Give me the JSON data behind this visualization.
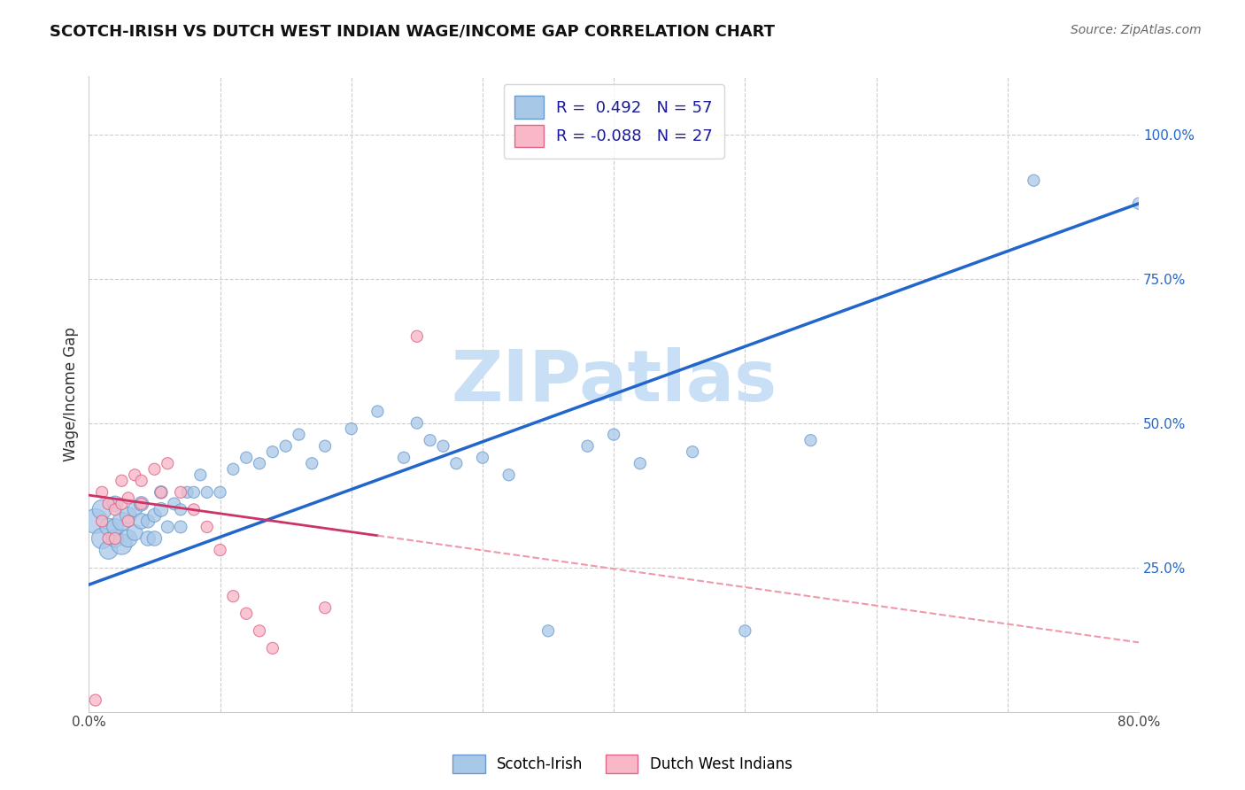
{
  "title": "SCOTCH-IRISH VS DUTCH WEST INDIAN WAGE/INCOME GAP CORRELATION CHART",
  "source": "Source: ZipAtlas.com",
  "ylabel": "Wage/Income Gap",
  "xlim": [
    0.0,
    0.8
  ],
  "ylim": [
    0.0,
    1.1
  ],
  "y_ticks_right": [
    0.25,
    0.5,
    0.75,
    1.0
  ],
  "y_tick_labels_right": [
    "25.0%",
    "50.0%",
    "75.0%",
    "100.0%"
  ],
  "series1_name": "Scotch-Irish",
  "series1_R": "0.492",
  "series1_N": "57",
  "series1_color": "#a8c8e8",
  "series1_edge_color": "#6699cc",
  "series2_name": "Dutch West Indians",
  "series2_R": "-0.088",
  "series2_N": "27",
  "series2_color": "#f8b8c8",
  "series2_edge_color": "#dd6688",
  "trend1_color": "#2266cc",
  "trend2_solid_color": "#cc3366",
  "trend2_dash_color": "#ee99aa",
  "watermark": "ZIPatlas",
  "watermark_color": "#c8dff5",
  "background_color": "#ffffff",
  "grid_color": "#cccccc",
  "title_fontsize": 13,
  "series1_x": [
    0.005,
    0.01,
    0.01,
    0.015,
    0.015,
    0.02,
    0.02,
    0.02,
    0.025,
    0.025,
    0.03,
    0.03,
    0.035,
    0.035,
    0.04,
    0.04,
    0.045,
    0.045,
    0.05,
    0.05,
    0.055,
    0.055,
    0.06,
    0.065,
    0.07,
    0.07,
    0.075,
    0.08,
    0.085,
    0.09,
    0.1,
    0.11,
    0.12,
    0.13,
    0.14,
    0.15,
    0.16,
    0.17,
    0.18,
    0.2,
    0.22,
    0.24,
    0.25,
    0.26,
    0.27,
    0.28,
    0.3,
    0.32,
    0.35,
    0.38,
    0.4,
    0.42,
    0.46,
    0.5,
    0.55,
    0.72,
    0.8
  ],
  "series1_y": [
    0.33,
    0.3,
    0.35,
    0.28,
    0.32,
    0.3,
    0.32,
    0.36,
    0.29,
    0.33,
    0.3,
    0.34,
    0.31,
    0.35,
    0.33,
    0.36,
    0.3,
    0.33,
    0.3,
    0.34,
    0.35,
    0.38,
    0.32,
    0.36,
    0.32,
    0.35,
    0.38,
    0.38,
    0.41,
    0.38,
    0.38,
    0.42,
    0.44,
    0.43,
    0.45,
    0.46,
    0.48,
    0.43,
    0.46,
    0.49,
    0.52,
    0.44,
    0.5,
    0.47,
    0.46,
    0.43,
    0.44,
    0.41,
    0.14,
    0.46,
    0.48,
    0.43,
    0.45,
    0.14,
    0.47,
    0.92,
    0.88
  ],
  "series1_sizes": [
    400,
    280,
    250,
    220,
    200,
    200,
    180,
    160,
    280,
    220,
    200,
    180,
    160,
    140,
    160,
    140,
    140,
    120,
    140,
    120,
    130,
    110,
    100,
    100,
    100,
    90,
    90,
    90,
    90,
    90,
    90,
    90,
    90,
    90,
    90,
    90,
    90,
    90,
    90,
    90,
    90,
    90,
    90,
    90,
    90,
    90,
    90,
    90,
    90,
    90,
    90,
    90,
    90,
    90,
    90,
    90,
    90
  ],
  "series2_x": [
    0.005,
    0.01,
    0.01,
    0.015,
    0.015,
    0.02,
    0.02,
    0.025,
    0.025,
    0.03,
    0.03,
    0.035,
    0.04,
    0.04,
    0.05,
    0.055,
    0.06,
    0.07,
    0.08,
    0.09,
    0.1,
    0.11,
    0.12,
    0.13,
    0.14,
    0.18,
    0.25
  ],
  "series2_y": [
    0.02,
    0.33,
    0.38,
    0.3,
    0.36,
    0.3,
    0.35,
    0.36,
    0.4,
    0.33,
    0.37,
    0.41,
    0.36,
    0.4,
    0.42,
    0.38,
    0.43,
    0.38,
    0.35,
    0.32,
    0.28,
    0.2,
    0.17,
    0.14,
    0.11,
    0.18,
    0.65
  ],
  "series2_sizes": [
    90,
    90,
    90,
    90,
    90,
    90,
    90,
    90,
    90,
    90,
    90,
    90,
    90,
    90,
    90,
    90,
    90,
    90,
    90,
    90,
    90,
    90,
    90,
    90,
    90,
    90,
    90
  ],
  "trend1_x0": 0.0,
  "trend1_y0": 0.22,
  "trend1_x1": 0.8,
  "trend1_y1": 0.88,
  "trend2_solid_x0": 0.0,
  "trend2_solid_y0": 0.375,
  "trend2_solid_x1": 0.22,
  "trend2_solid_y1": 0.305,
  "trend2_dash_x0": 0.22,
  "trend2_dash_y0": 0.305,
  "trend2_dash_x1": 0.8,
  "trend2_dash_y1": 0.12
}
